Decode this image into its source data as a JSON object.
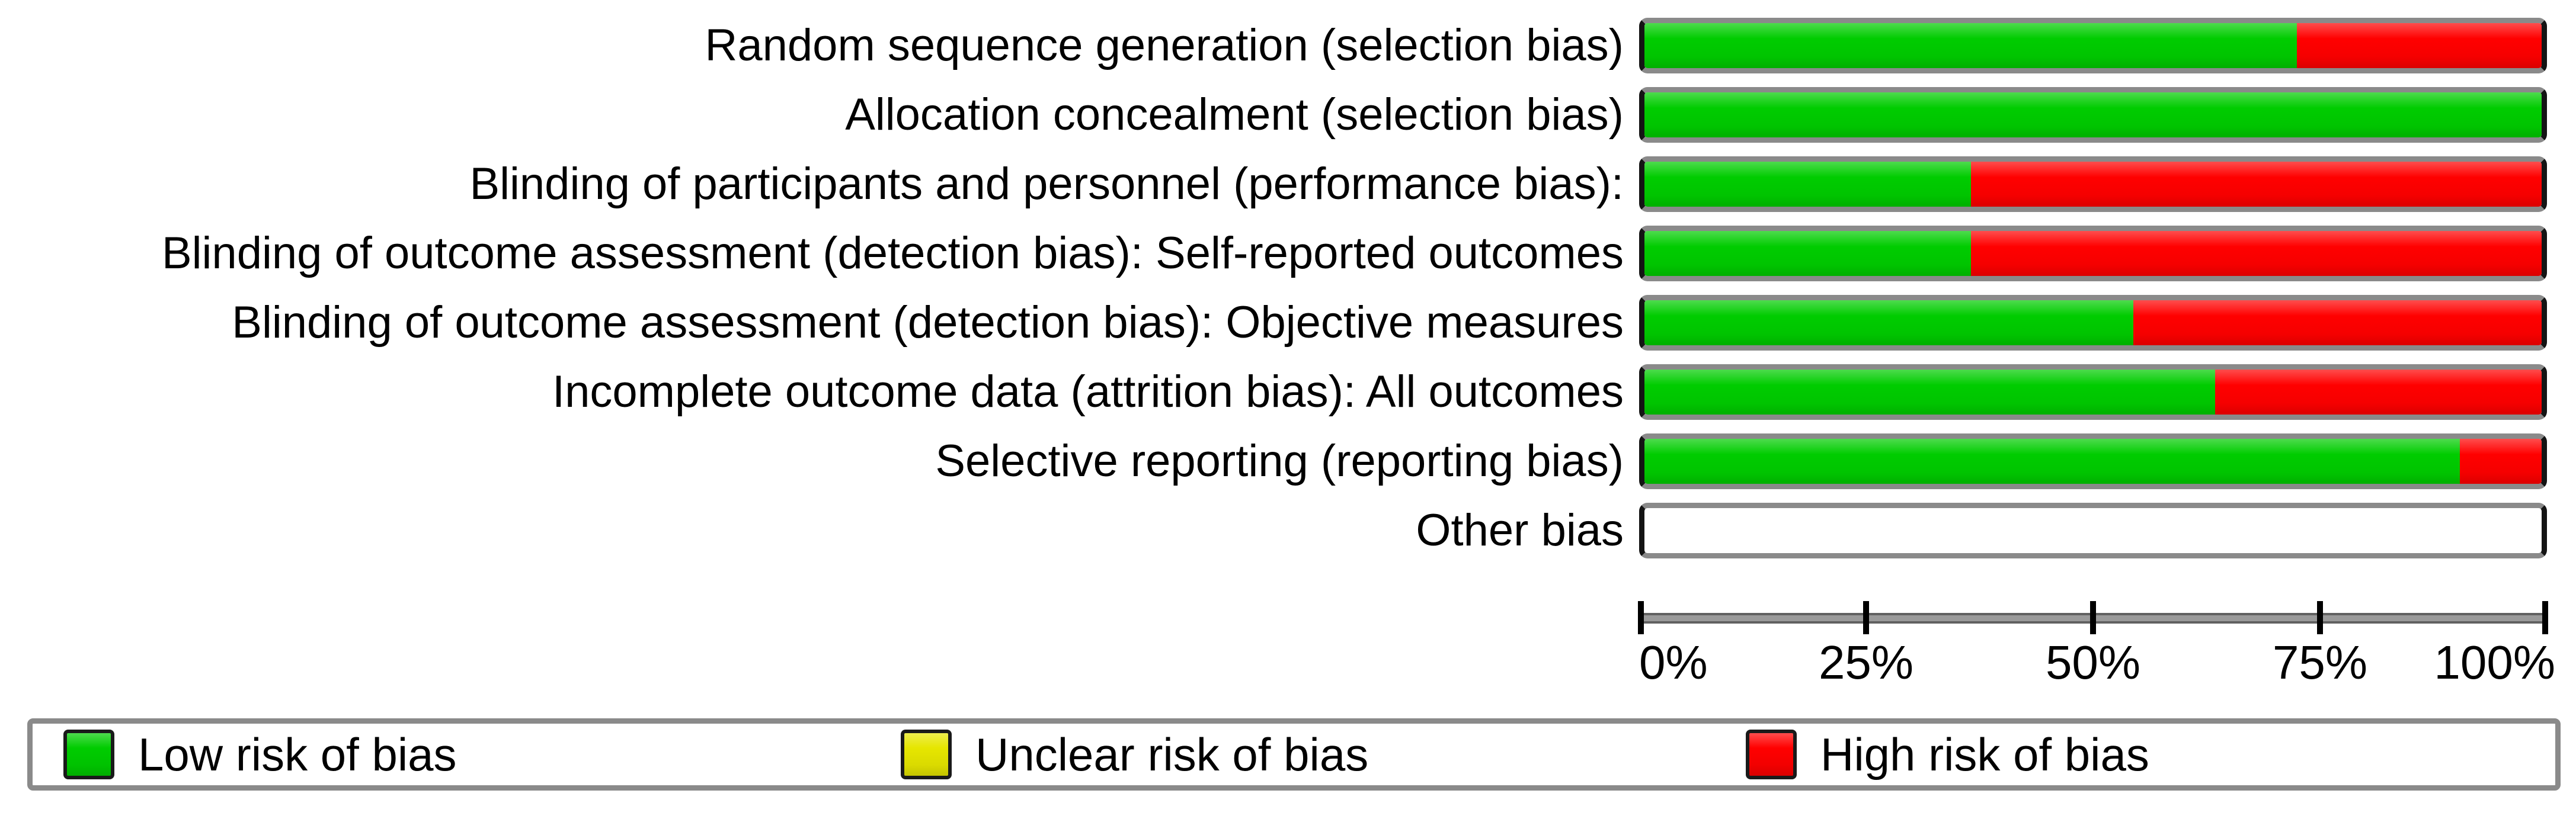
{
  "colors": {
    "low": "#00cc00",
    "unclear": "#e6e600",
    "high": "#ff0000"
  },
  "chart_data": {
    "type": "bar",
    "orientation": "horizontal-stacked",
    "x_axis": {
      "range": [
        0,
        100
      ],
      "unit": "%",
      "ticks": [
        "0%",
        "25%",
        "50%",
        "75%",
        "100%"
      ]
    },
    "legend": [
      {
        "label": "Low risk of bias",
        "color": "#00cc00"
      },
      {
        "label": "Unclear risk of bias",
        "color": "#e6e600"
      },
      {
        "label": "High risk of bias",
        "color": "#ff0000"
      }
    ],
    "rows": [
      {
        "label": "Random sequence generation (selection bias)",
        "low_pct": 72.7,
        "unclear_pct": 0,
        "high_pct": 27.3
      },
      {
        "label": "Allocation concealment (selection bias)",
        "low_pct": 100,
        "unclear_pct": 0,
        "high_pct": 0
      },
      {
        "label": "Blinding of participants and personnel (performance bias):",
        "low_pct": 36.4,
        "unclear_pct": 0,
        "high_pct": 63.6
      },
      {
        "label": "Blinding of outcome assessment (detection bias): Self-reported outcomes",
        "low_pct": 36.4,
        "unclear_pct": 0,
        "high_pct": 63.6
      },
      {
        "label": "Blinding of outcome assessment (detection bias): Objective measures",
        "low_pct": 54.5,
        "unclear_pct": 0,
        "high_pct": 45.5
      },
      {
        "label": "Incomplete outcome data (attrition bias): All outcomes",
        "low_pct": 63.6,
        "unclear_pct": 0,
        "high_pct": 36.4
      },
      {
        "label": "Selective reporting (reporting bias)",
        "low_pct": 90.9,
        "unclear_pct": 0,
        "high_pct": 9.1
      },
      {
        "label": "Other bias",
        "low_pct": 0,
        "unclear_pct": 0,
        "high_pct": 0
      }
    ]
  }
}
